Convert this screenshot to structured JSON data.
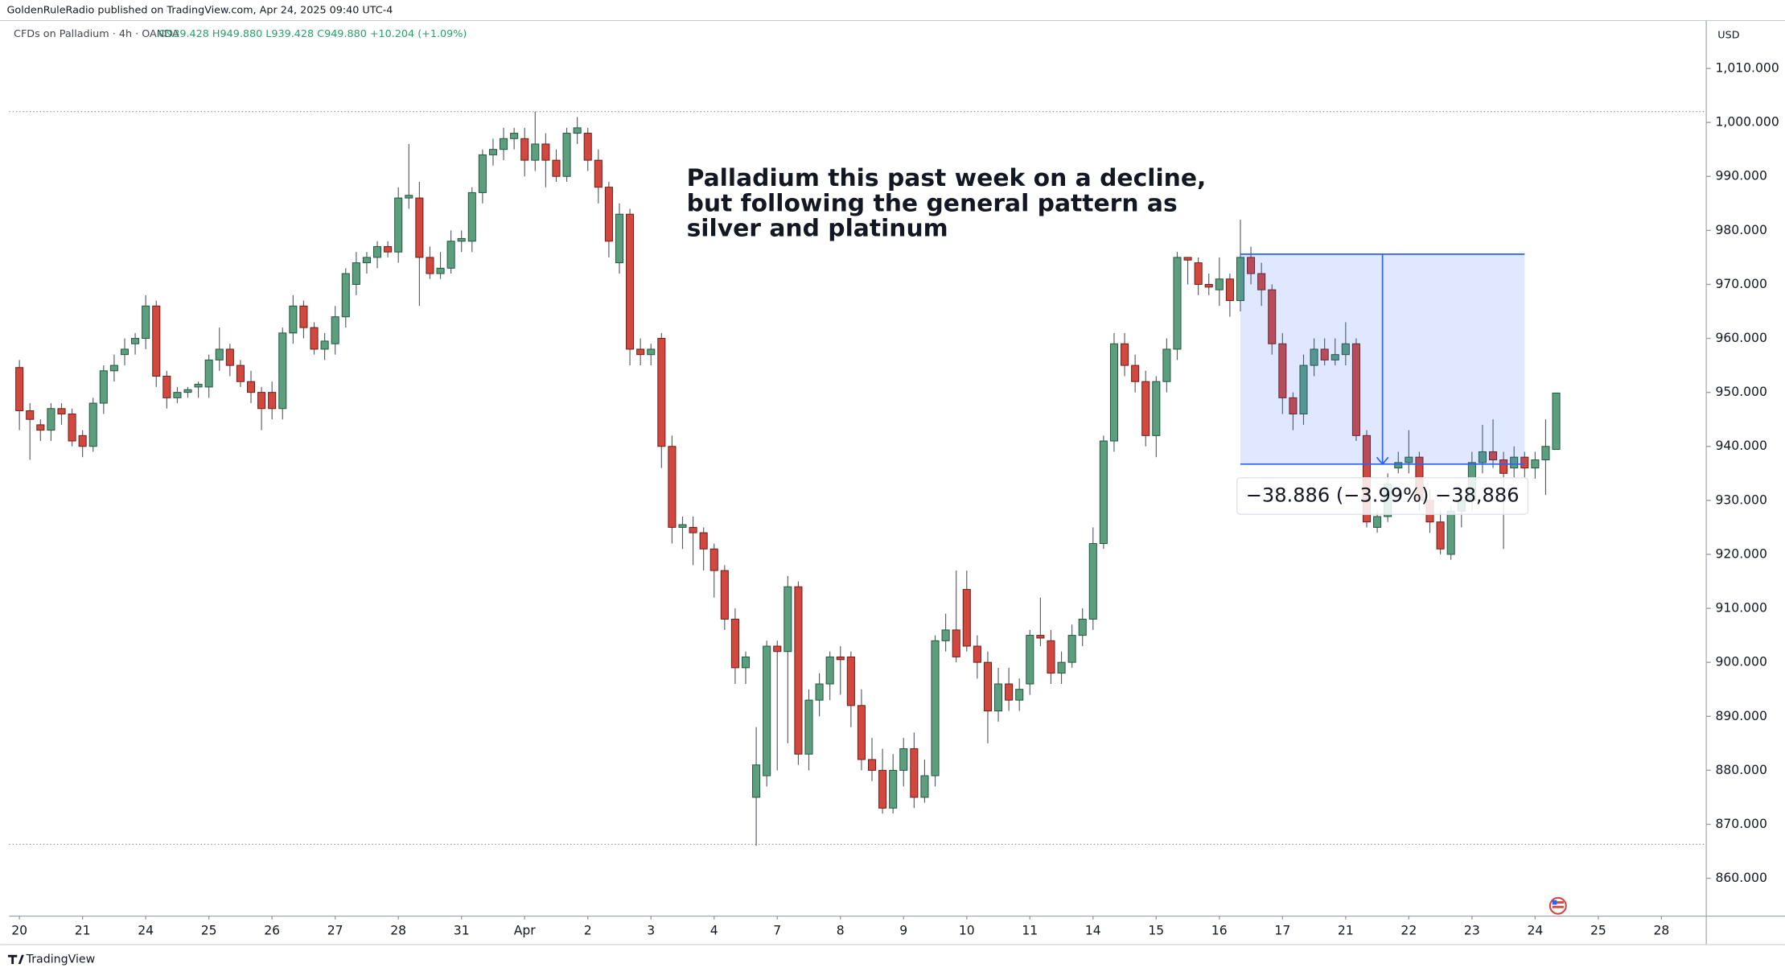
{
  "header": {
    "publisher": "GoldenRuleRadio published on TradingView.com, Apr 24, 2025 09:40 UTC-4",
    "symbol": "CFDs on Palladium · 4h · OANDA",
    "ohlc": "O939.428 H949.880 L939.428 C949.880 +10.204 (+1.09%)"
  },
  "currency": "USD",
  "footer": {
    "brand": "TradingView"
  },
  "chart_data": {
    "type": "candlestick",
    "annotation": [
      "Palladium this past week on a decline,",
      "but following the general pattern as",
      "silver and platinum"
    ],
    "up_color": "#5b9f7f",
    "down_color": "#d2483e",
    "xlim": [
      -0.975,
      160.26
    ],
    "ylim": [
      853.0,
      1018.87
    ],
    "xticks": [
      {
        "value": 0,
        "label": "20"
      },
      {
        "value": 6,
        "label": "21"
      },
      {
        "value": 12,
        "label": "24"
      },
      {
        "value": 18,
        "label": "25"
      },
      {
        "value": 24,
        "label": "26"
      },
      {
        "value": 30,
        "label": "27"
      },
      {
        "value": 36,
        "label": "28"
      },
      {
        "value": 42,
        "label": "31"
      },
      {
        "value": 48,
        "label": "Apr"
      },
      {
        "value": 54,
        "label": "2"
      },
      {
        "value": 60,
        "label": "3"
      },
      {
        "value": 66,
        "label": "4"
      },
      {
        "value": 72,
        "label": "7"
      },
      {
        "value": 78,
        "label": "8"
      },
      {
        "value": 84,
        "label": "9"
      },
      {
        "value": 90,
        "label": "10"
      },
      {
        "value": 96,
        "label": "11"
      },
      {
        "value": 102,
        "label": "14"
      },
      {
        "value": 108,
        "label": "15"
      },
      {
        "value": 114,
        "label": "16"
      },
      {
        "value": 120,
        "label": "17"
      },
      {
        "value": 126,
        "label": "21"
      },
      {
        "value": 132,
        "label": "22"
      },
      {
        "value": 138,
        "label": "23"
      },
      {
        "value": 144,
        "label": "24"
      },
      {
        "value": 150,
        "label": "25"
      },
      {
        "value": 156,
        "label": "28"
      }
    ],
    "yticks": [
      {
        "value": 1010,
        "label": "1,010.000"
      },
      {
        "value": 1000,
        "label": "1,000.000"
      },
      {
        "value": 990,
        "label": "990.000"
      },
      {
        "value": 980,
        "label": "980.000"
      },
      {
        "value": 970,
        "label": "970.000"
      },
      {
        "value": 960,
        "label": "960.000"
      },
      {
        "value": 950,
        "label": "950.000"
      },
      {
        "value": 940,
        "label": "940.000"
      },
      {
        "value": 930,
        "label": "930.000"
      },
      {
        "value": 920,
        "label": "920.000"
      },
      {
        "value": 910,
        "label": "910.000"
      },
      {
        "value": 900,
        "label": "900.000"
      },
      {
        "value": 890,
        "label": "890.000"
      },
      {
        "value": 880,
        "label": "880.000"
      },
      {
        "value": 870,
        "label": "870.000"
      },
      {
        "value": 860,
        "label": "860.000"
      }
    ],
    "hlines": [
      1002,
      866.3
    ],
    "measure": {
      "x": [
        116,
        143
      ],
      "y": [
        975.6,
        936.714
      ],
      "label": "−38.886 (−3.99%) −38,886"
    },
    "series": [
      {
        "values": [
          [
            954.6,
            956,
            943,
            946.6
          ],
          [
            946.6,
            948,
            937.5,
            945
          ],
          [
            944,
            945,
            941,
            943
          ],
          [
            943,
            948,
            941,
            947
          ],
          [
            947,
            948,
            944,
            946
          ],
          [
            946,
            947,
            940,
            941
          ],
          [
            942,
            943,
            938,
            940
          ],
          [
            940,
            949,
            939,
            948
          ],
          [
            948,
            955,
            946,
            954
          ],
          [
            954,
            957,
            952,
            955
          ],
          [
            957,
            960,
            955,
            958
          ],
          [
            959,
            961,
            957,
            960
          ],
          [
            960,
            968,
            958,
            966
          ],
          [
            966,
            967,
            951,
            953
          ],
          [
            953,
            954,
            947,
            949
          ],
          [
            949,
            951,
            948,
            950
          ],
          [
            950,
            951,
            949,
            950.5
          ],
          [
            951,
            952,
            949,
            951.5
          ],
          [
            951,
            957,
            949,
            956
          ],
          [
            956,
            962,
            954,
            958
          ],
          [
            958,
            959,
            953,
            955
          ],
          [
            955,
            956,
            951,
            952
          ],
          [
            952,
            954,
            948,
            950
          ],
          [
            950,
            951,
            943,
            947
          ],
          [
            950,
            952,
            945,
            947
          ],
          [
            947,
            962,
            945,
            961
          ],
          [
            961,
            968,
            959,
            966
          ],
          [
            966,
            967,
            960,
            962
          ],
          [
            962,
            963,
            957,
            958
          ],
          [
            958,
            961,
            956,
            959.5
          ],
          [
            959,
            966,
            957,
            964
          ],
          [
            964,
            973,
            962,
            972
          ],
          [
            970,
            976,
            968,
            974
          ],
          [
            974,
            976,
            972,
            975
          ],
          [
            975,
            978,
            973,
            977
          ],
          [
            977,
            978,
            975,
            976
          ],
          [
            976,
            988,
            974,
            986
          ],
          [
            986,
            996,
            984,
            986.5
          ],
          [
            986,
            989,
            966,
            975
          ],
          [
            975,
            977,
            971,
            972
          ],
          [
            972,
            976,
            971,
            973
          ],
          [
            973,
            980,
            972,
            978
          ],
          [
            978,
            980,
            976,
            978.5
          ],
          [
            978,
            988,
            976,
            987
          ],
          [
            987,
            995,
            985,
            994
          ],
          [
            994,
            997,
            992,
            995
          ],
          [
            995,
            999,
            993,
            997
          ],
          [
            997,
            999,
            995,
            998
          ],
          [
            997,
            999,
            990,
            993
          ],
          [
            993,
            1002,
            991,
            996
          ],
          [
            996,
            998,
            988,
            993
          ],
          [
            993,
            995,
            989,
            990
          ],
          [
            990,
            999,
            989,
            998
          ],
          [
            998,
            1001,
            996,
            999
          ],
          [
            998,
            999,
            991,
            993
          ],
          [
            993,
            995,
            985,
            988
          ],
          [
            988,
            989,
            975,
            978
          ],
          [
            974,
            985,
            972,
            983
          ],
          [
            983,
            984,
            955,
            958
          ],
          [
            958,
            960,
            955,
            957
          ],
          [
            957,
            959,
            955,
            958
          ],
          [
            960,
            961,
            936,
            940
          ],
          [
            940,
            942,
            922,
            925
          ],
          [
            925,
            927,
            921,
            925.5
          ],
          [
            925,
            927,
            918,
            924
          ],
          [
            924,
            925,
            917,
            921
          ],
          [
            921,
            922,
            912,
            917
          ],
          [
            917,
            918,
            906,
            908
          ],
          [
            908,
            910,
            896,
            899
          ],
          [
            899,
            902,
            896,
            901
          ],
          [
            875,
            888,
            866,
            881
          ],
          [
            879,
            904,
            877,
            903
          ],
          [
            903,
            904,
            880,
            902
          ],
          [
            902,
            916,
            885,
            914
          ],
          [
            914,
            915,
            881,
            883
          ],
          [
            883,
            895,
            880,
            893
          ],
          [
            893,
            898,
            890,
            896
          ],
          [
            896,
            902,
            893,
            901
          ],
          [
            901,
            903,
            894,
            900.5
          ],
          [
            901,
            902,
            888,
            892
          ],
          [
            892,
            895,
            880,
            882
          ],
          [
            882,
            886,
            878,
            880
          ],
          [
            880,
            884,
            872,
            873
          ],
          [
            873,
            883,
            872,
            880
          ],
          [
            880,
            886,
            877,
            884
          ],
          [
            884,
            887,
            873,
            875
          ],
          [
            875,
            882,
            874,
            879
          ],
          [
            879,
            905,
            877,
            904
          ],
          [
            904,
            909,
            902,
            906
          ],
          [
            906,
            917,
            900,
            901
          ],
          [
            913.5,
            917,
            902,
            903
          ],
          [
            903,
            905,
            897,
            900
          ],
          [
            900,
            902,
            885,
            891
          ],
          [
            891,
            899,
            889,
            896
          ],
          [
            896,
            899,
            891,
            893
          ],
          [
            893,
            897,
            891,
            895
          ],
          [
            896,
            906,
            894,
            905
          ],
          [
            905,
            912,
            903,
            904.5
          ],
          [
            904,
            906,
            896,
            898
          ],
          [
            898,
            902,
            896,
            900
          ],
          [
            900,
            907,
            899,
            905
          ],
          [
            905,
            910,
            903,
            908
          ],
          [
            908,
            925,
            906,
            922
          ],
          [
            922,
            942,
            921,
            941
          ],
          [
            941,
            961,
            939,
            959
          ],
          [
            959,
            961,
            953,
            955
          ],
          [
            955,
            957,
            950,
            952
          ],
          [
            952,
            954,
            940,
            942
          ],
          [
            942,
            953,
            938,
            952
          ],
          [
            952,
            960,
            950,
            958
          ],
          [
            958,
            976,
            956,
            975
          ],
          [
            975,
            975,
            970,
            974.5
          ],
          [
            974,
            975,
            968,
            970
          ],
          [
            970,
            972,
            968,
            969.5
          ],
          [
            969,
            975,
            966,
            971
          ],
          [
            971,
            972,
            964,
            967
          ],
          [
            967,
            982,
            965,
            975
          ],
          [
            975,
            977,
            970,
            972
          ],
          [
            972,
            974,
            966,
            969
          ],
          [
            969,
            970,
            957,
            959
          ],
          [
            959,
            961,
            946,
            949
          ],
          [
            949,
            950,
            943,
            946
          ],
          [
            946,
            957,
            944,
            955
          ],
          [
            955,
            960,
            953,
            958
          ],
          [
            958,
            960,
            955,
            956
          ],
          [
            956,
            960,
            955,
            957
          ],
          [
            957,
            963,
            955,
            959
          ],
          [
            959,
            960,
            941,
            942
          ],
          [
            942,
            943,
            925,
            926
          ],
          [
            925,
            928,
            924,
            927
          ],
          [
            927,
            935,
            926,
            933
          ],
          [
            936,
            939,
            935,
            937
          ],
          [
            937,
            943,
            935,
            938
          ],
          [
            938,
            939,
            928,
            930
          ],
          [
            930,
            932,
            924,
            926
          ],
          [
            926,
            928,
            920,
            921
          ],
          [
            920,
            929,
            919,
            928
          ],
          [
            928,
            932,
            925,
            930
          ],
          [
            930,
            939,
            928,
            937
          ],
          [
            937,
            944,
            935,
            939
          ],
          [
            939,
            945,
            936,
            937.5
          ],
          [
            937.5,
            939,
            921,
            935
          ],
          [
            936,
            940,
            934,
            938
          ],
          [
            938,
            939,
            934,
            936
          ],
          [
            936,
            939,
            934,
            937.5
          ],
          [
            937.5,
            945,
            931,
            940
          ],
          [
            939.428,
            949.88,
            939.428,
            949.88
          ]
        ]
      }
    ]
  }
}
